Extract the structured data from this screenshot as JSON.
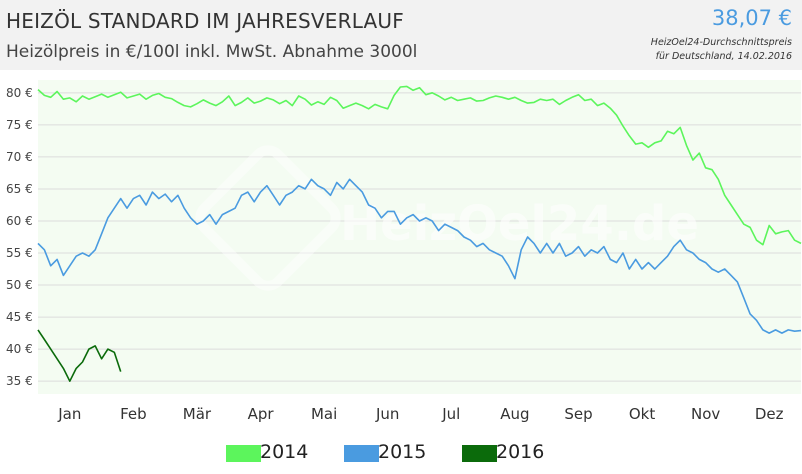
{
  "header": {
    "title": "HEIZÖL STANDARD IM JAHRESVERLAUF",
    "subtitle": "Heizölpreis in €/100l inkl. MwSt. Abnahme 3000l",
    "price": "38,07 €",
    "price_note_line1": "HeizOel24-Durchschnittspreis",
    "price_note_line2": "für Deutschland, 14.02.2016"
  },
  "watermark": "HeizOel24.de",
  "chart_data": {
    "type": "line",
    "title": "HEIZÖL STANDARD IM JAHRESVERLAUF",
    "ylabel": "Heizölpreis in €/100l inkl. MwSt. Abnahme 3000l",
    "ylim": [
      33,
      82
    ],
    "yticks": [
      35,
      40,
      45,
      50,
      55,
      60,
      65,
      70,
      75,
      80
    ],
    "ytick_labels": [
      "35 €",
      "40 €",
      "45 €",
      "50 €",
      "55 €",
      "60 €",
      "65 €",
      "70 €",
      "75 €",
      "80 €"
    ],
    "xlim": [
      0,
      12
    ],
    "xticks": [
      0.5,
      1.5,
      2.5,
      3.5,
      4.5,
      5.5,
      6.5,
      7.5,
      8.5,
      9.5,
      10.5,
      11.5
    ],
    "categories": [
      "Jan",
      "Feb",
      "Mär",
      "Apr",
      "Mai",
      "Jun",
      "Jul",
      "Aug",
      "Sep",
      "Okt",
      "Nov",
      "Dez"
    ],
    "grid": true,
    "legend_position": "bottom",
    "series": [
      {
        "name": "2014",
        "color": "#5cf55c",
        "x": [
          0,
          0.1,
          0.2,
          0.3,
          0.4,
          0.5,
          0.6,
          0.7,
          0.8,
          0.9,
          1.0,
          1.1,
          1.2,
          1.3,
          1.4,
          1.5,
          1.6,
          1.7,
          1.8,
          1.9,
          2.0,
          2.1,
          2.2,
          2.3,
          2.4,
          2.5,
          2.6,
          2.7,
          2.8,
          2.9,
          3.0,
          3.1,
          3.2,
          3.3,
          3.4,
          3.5,
          3.6,
          3.7,
          3.8,
          3.9,
          4.0,
          4.1,
          4.2,
          4.3,
          4.4,
          4.5,
          4.6,
          4.7,
          4.8,
          4.9,
          5.0,
          5.1,
          5.2,
          5.3,
          5.4,
          5.5,
          5.6,
          5.7,
          5.8,
          5.9,
          6.0,
          6.1,
          6.2,
          6.3,
          6.4,
          6.5,
          6.6,
          6.7,
          6.8,
          6.9,
          7.0,
          7.1,
          7.2,
          7.3,
          7.4,
          7.5,
          7.6,
          7.7,
          7.8,
          7.9,
          8.0,
          8.1,
          8.2,
          8.3,
          8.4,
          8.5,
          8.6,
          8.7,
          8.8,
          8.9,
          9.0,
          9.1,
          9.2,
          9.3,
          9.4,
          9.5,
          9.6,
          9.7,
          9.8,
          9.9,
          10.0,
          10.1,
          10.2,
          10.3,
          10.4,
          10.5,
          10.6,
          10.7,
          10.8,
          10.9,
          11.0,
          11.1,
          11.2,
          11.3,
          11.4,
          11.5,
          11.6,
          11.7,
          11.8,
          11.9,
          12.0
        ],
        "values": [
          80.5,
          79.6,
          79.3,
          80.2,
          79.0,
          79.2,
          78.6,
          79.5,
          79.0,
          79.4,
          79.8,
          79.3,
          79.7,
          80.1,
          79.2,
          79.5,
          79.8,
          79.0,
          79.6,
          79.9,
          79.3,
          79.1,
          78.5,
          78.0,
          77.8,
          78.3,
          78.9,
          78.4,
          78.0,
          78.6,
          79.5,
          78.0,
          78.5,
          79.2,
          78.4,
          78.7,
          79.2,
          78.9,
          78.3,
          78.8,
          78.0,
          79.5,
          79.0,
          78.1,
          78.6,
          78.2,
          79.3,
          78.8,
          77.6,
          78.0,
          78.4,
          78.0,
          77.5,
          78.2,
          77.8,
          77.5,
          79.6,
          80.9,
          81.0,
          80.4,
          80.8,
          79.7,
          80.0,
          79.5,
          78.9,
          79.3,
          78.8,
          79.0,
          79.2,
          78.7,
          78.8,
          79.2,
          79.5,
          79.3,
          79.0,
          79.3,
          78.8,
          78.4,
          78.5,
          79.0,
          78.8,
          79.0,
          78.2,
          78.8,
          79.3,
          79.7,
          78.8,
          79.0,
          78.0,
          78.4,
          77.6,
          76.5,
          74.8,
          73.3,
          72.0,
          72.2,
          71.5,
          72.2,
          72.5,
          74.0,
          73.6,
          74.6,
          71.8,
          69.5,
          70.6,
          68.3,
          68.0,
          66.5,
          64.0,
          62.5,
          61.0,
          59.5,
          59.0,
          57.0,
          56.3,
          59.3,
          58.0,
          58.3,
          58.5,
          57.0,
          56.5
        ]
      },
      {
        "name": "2015",
        "color": "#4a9be0",
        "x": [
          0,
          0.1,
          0.2,
          0.3,
          0.4,
          0.5,
          0.6,
          0.7,
          0.8,
          0.9,
          1.0,
          1.1,
          1.2,
          1.3,
          1.4,
          1.5,
          1.6,
          1.7,
          1.8,
          1.9,
          2.0,
          2.1,
          2.2,
          2.3,
          2.4,
          2.5,
          2.6,
          2.7,
          2.8,
          2.9,
          3.0,
          3.1,
          3.2,
          3.3,
          3.4,
          3.5,
          3.6,
          3.7,
          3.8,
          3.9,
          4.0,
          4.1,
          4.2,
          4.3,
          4.4,
          4.5,
          4.6,
          4.7,
          4.8,
          4.9,
          5.0,
          5.1,
          5.2,
          5.3,
          5.4,
          5.5,
          5.6,
          5.7,
          5.8,
          5.9,
          6.0,
          6.1,
          6.2,
          6.3,
          6.4,
          6.5,
          6.6,
          6.7,
          6.8,
          6.9,
          7.0,
          7.1,
          7.2,
          7.3,
          7.4,
          7.5,
          7.6,
          7.7,
          7.8,
          7.9,
          8.0,
          8.1,
          8.2,
          8.3,
          8.4,
          8.5,
          8.6,
          8.7,
          8.8,
          8.9,
          9.0,
          9.1,
          9.2,
          9.3,
          9.4,
          9.5,
          9.6,
          9.7,
          9.8,
          9.9,
          10.0,
          10.1,
          10.2,
          10.3,
          10.4,
          10.5,
          10.6,
          10.7,
          10.8,
          10.9,
          11.0,
          11.1,
          11.2,
          11.3,
          11.4,
          11.5,
          11.6,
          11.7,
          11.8,
          11.9,
          12.0
        ],
        "values": [
          56.5,
          55.5,
          53.0,
          54.0,
          51.5,
          53.0,
          54.5,
          55.0,
          54.5,
          55.5,
          58.0,
          60.5,
          62.0,
          63.5,
          62.0,
          63.5,
          64.0,
          62.5,
          64.5,
          63.5,
          64.2,
          63.0,
          64.0,
          62.0,
          60.5,
          59.5,
          60.0,
          61.0,
          59.5,
          61.0,
          61.5,
          62.0,
          64.0,
          64.5,
          63.0,
          64.5,
          65.5,
          64.0,
          62.5,
          64.0,
          64.5,
          65.5,
          65.0,
          66.5,
          65.5,
          65.0,
          64.0,
          66.0,
          65.0,
          66.5,
          65.5,
          64.5,
          62.5,
          62.0,
          60.5,
          61.5,
          61.5,
          59.5,
          60.5,
          61.0,
          60.0,
          60.5,
          60.0,
          58.5,
          59.5,
          59.0,
          58.5,
          57.5,
          57.0,
          56.0,
          56.5,
          55.5,
          55.0,
          54.5,
          53.0,
          51.0,
          55.5,
          57.5,
          56.5,
          55.0,
          56.5,
          55.0,
          56.5,
          54.5,
          55.0,
          56.0,
          54.5,
          55.5,
          55.0,
          56.0,
          54.0,
          53.5,
          55.0,
          52.5,
          54.0,
          52.5,
          53.5,
          52.5,
          53.5,
          54.5,
          56.0,
          57.0,
          55.5,
          55.0,
          54.0,
          53.5,
          52.5,
          52.0,
          52.5,
          51.5,
          50.5,
          48.0,
          45.5,
          44.5,
          43.0,
          42.5,
          43.0,
          42.5,
          43.0,
          42.8,
          42.9
        ]
      },
      {
        "name": "2016",
        "color": "#0b6b0b",
        "x": [
          0,
          0.1,
          0.2,
          0.3,
          0.4,
          0.5,
          0.6,
          0.7,
          0.8,
          0.9,
          1.0,
          1.1,
          1.2,
          1.3
        ],
        "values": [
          43.0,
          41.5,
          40.0,
          38.5,
          37.0,
          35.0,
          37.0,
          38.0,
          40.0,
          40.5,
          38.5,
          40.0,
          39.5,
          36.5
        ]
      }
    ]
  }
}
